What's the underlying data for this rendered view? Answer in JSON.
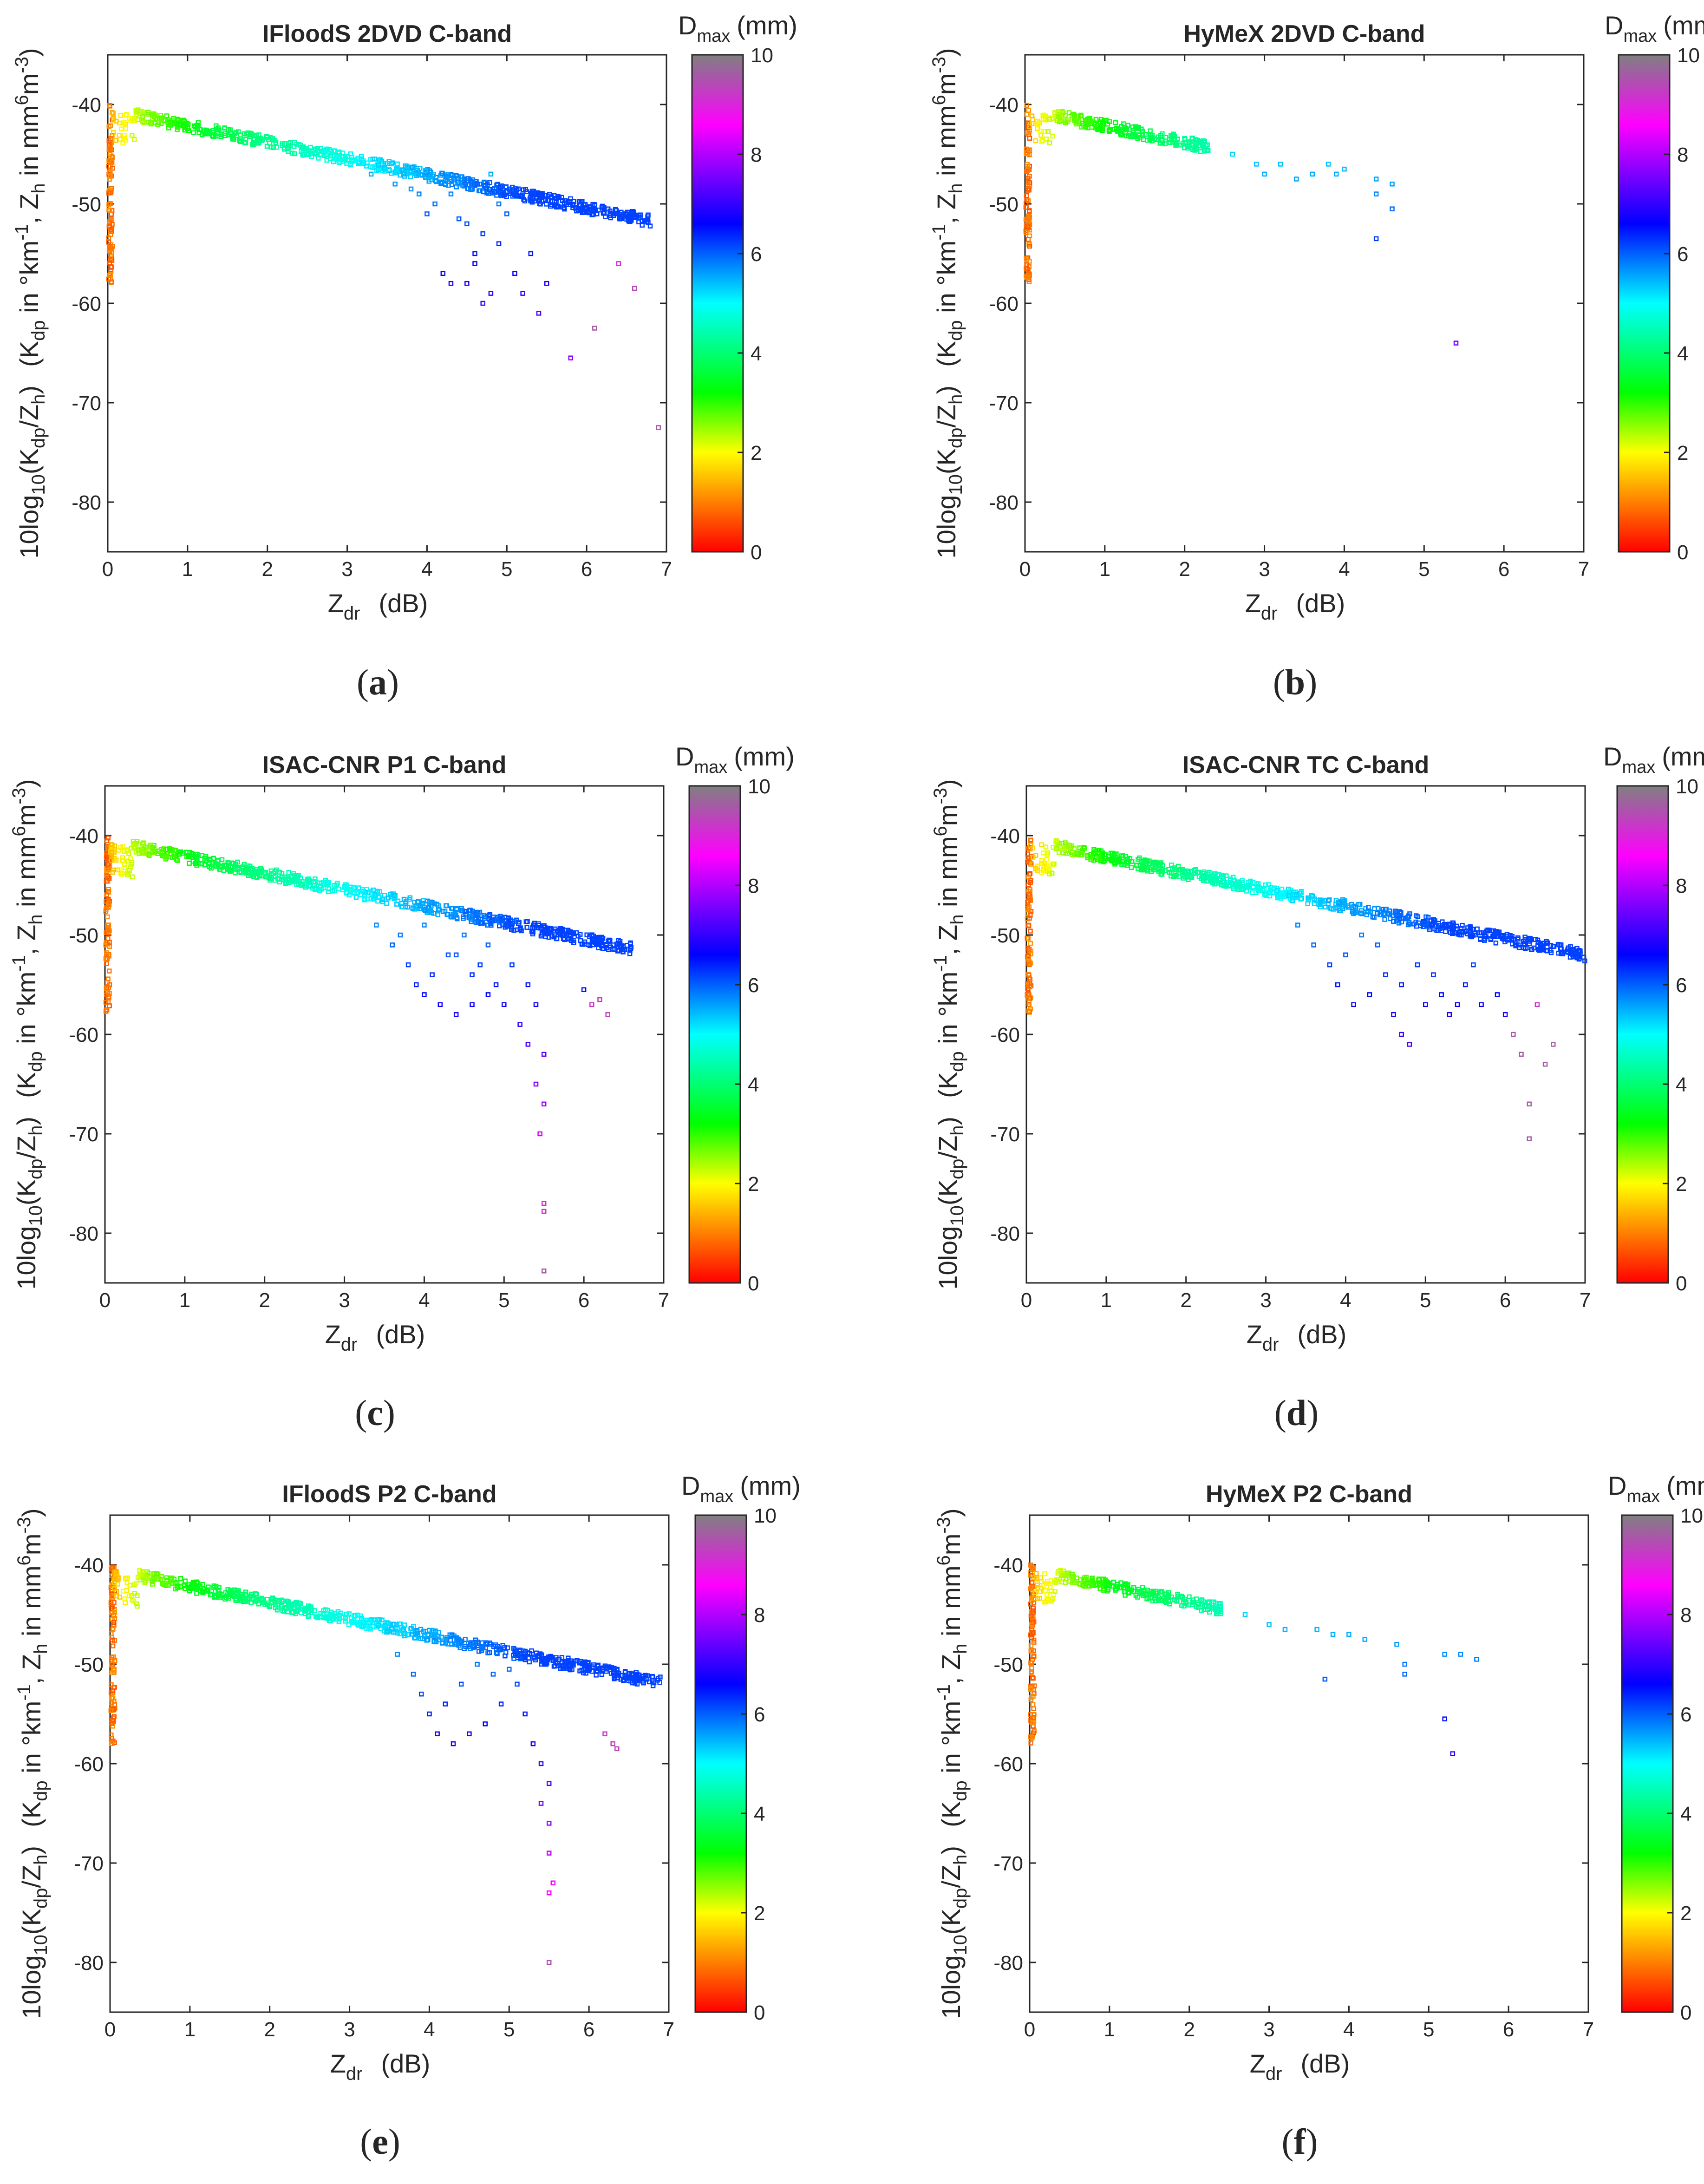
{
  "common": {
    "x_label_main": "Z",
    "x_label_sub": "dr",
    "x_label_unit": "(dB)",
    "y_label": {
      "p1": "10log",
      "p2": "10",
      "p3": "(K",
      "p4": "dp",
      "p5": "/Z",
      "p6": "h",
      "p7": ")",
      "p8": "(K",
      "p9": "dp",
      "p10": " in °km",
      "p11": "-1",
      "p12": ", Z",
      "p13": "h",
      "p14": " in mm",
      "p15": "6",
      "p16": "m",
      "p17": "-3",
      "p18": ")"
    },
    "colorbar": {
      "label_main": "D",
      "label_sub": "max",
      "label_unit": "(mm)",
      "ticks": [
        "0",
        "2",
        "4",
        "6",
        "8",
        "10"
      ],
      "range": [
        0,
        10
      ]
    },
    "colormap_stops": [
      "#ff0000",
      "#ff7f00",
      "#ffff00",
      "#00ff00",
      "#00ffff",
      "#0000ff",
      "#7f00ff",
      "#ff00ff",
      "#808080"
    ],
    "x_ticks": [
      "0",
      "1",
      "2",
      "3",
      "4",
      "5",
      "6",
      "7"
    ],
    "y_ticks": [
      "-40",
      "-50",
      "-60",
      "-70",
      "-80"
    ]
  },
  "chart_data": [
    {
      "type": "scatter",
      "panel": "a",
      "title": "IFloodS 2DVD C-band",
      "caption": "a",
      "xlabel": "Zdr (dB)",
      "ylabel": "10log10(Kdp/Zh)",
      "xlim": [
        0,
        7
      ],
      "ylim": [
        -85,
        -35
      ],
      "cloud_max_x": 6.8,
      "outliers": [
        [
          3.3,
          -47
        ],
        [
          3.6,
          -48
        ],
        [
          3.9,
          -49
        ],
        [
          4.1,
          -50
        ],
        [
          4.3,
          -49
        ],
        [
          4.5,
          -52
        ],
        [
          4.6,
          -55
        ],
        [
          4.7,
          -53
        ],
        [
          4.9,
          -54
        ],
        [
          4.2,
          -57
        ],
        [
          4.5,
          -58
        ],
        [
          4.8,
          -59
        ],
        [
          4.3,
          -58
        ],
        [
          4.6,
          -56
        ],
        [
          5.1,
          -57
        ],
        [
          5.2,
          -59
        ],
        [
          5.4,
          -61
        ],
        [
          4.7,
          -60
        ],
        [
          5.5,
          -58
        ],
        [
          5.8,
          -65.5
        ],
        [
          6.1,
          -62.5
        ],
        [
          6.4,
          -56
        ],
        [
          6.6,
          -58.5
        ],
        [
          6.9,
          -72.5
        ],
        [
          4.4,
          -48
        ],
        [
          4.8,
          -47
        ],
        [
          5.0,
          -51
        ],
        [
          3.8,
          -48.5
        ],
        [
          4.0,
          -51
        ],
        [
          4.9,
          -50
        ],
        [
          4.4,
          -51.5
        ],
        [
          5.3,
          -55
        ]
      ]
    },
    {
      "type": "scatter",
      "panel": "b",
      "title": "HyMeX 2DVD C-band",
      "caption": "b",
      "xlabel": "Zdr (dB)",
      "ylabel": "10log10(Kdp/Zh)",
      "xlim": [
        0,
        7
      ],
      "ylim": [
        -85,
        -35
      ],
      "cloud_max_x": 2.3,
      "outliers": [
        [
          2.6,
          -45
        ],
        [
          2.9,
          -46
        ],
        [
          3.0,
          -47
        ],
        [
          3.2,
          -46
        ],
        [
          3.4,
          -47.5
        ],
        [
          3.6,
          -47
        ],
        [
          3.8,
          -46
        ],
        [
          3.9,
          -47
        ],
        [
          4.0,
          -46.5
        ],
        [
          4.4,
          -47.5
        ],
        [
          4.6,
          -48
        ],
        [
          4.6,
          -50.5
        ],
        [
          4.4,
          -53.5
        ],
        [
          4.4,
          -49
        ],
        [
          5.4,
          -64
        ]
      ]
    },
    {
      "type": "scatter",
      "panel": "c",
      "title": "ISAC-CNR P1 C-band",
      "caption": "c",
      "xlabel": "Zdr (dB)",
      "ylabel": "10log10(Kdp/Zh)",
      "xlim": [
        0,
        7
      ],
      "ylim": [
        -85,
        -35
      ],
      "cloud_max_x": 6.6,
      "outliers": [
        [
          3.4,
          -49
        ],
        [
          3.6,
          -51
        ],
        [
          3.8,
          -53
        ],
        [
          3.9,
          -55
        ],
        [
          4.0,
          -56
        ],
        [
          4.2,
          -57
        ],
        [
          4.4,
          -58
        ],
        [
          4.6,
          -57
        ],
        [
          4.8,
          -56
        ],
        [
          4.1,
          -54
        ],
        [
          4.3,
          -52
        ],
        [
          4.5,
          -50
        ],
        [
          4.7,
          -53
        ],
        [
          4.9,
          -55
        ],
        [
          5.0,
          -57
        ],
        [
          5.2,
          -59
        ],
        [
          5.3,
          -61
        ],
        [
          5.4,
          -57
        ],
        [
          5.5,
          -62
        ],
        [
          5.4,
          -65
        ],
        [
          5.5,
          -67
        ],
        [
          5.45,
          -70
        ],
        [
          5.5,
          -77
        ],
        [
          5.5,
          -77.8
        ],
        [
          5.5,
          -83.8
        ],
        [
          6.0,
          -55.5
        ],
        [
          6.2,
          -56.5
        ],
        [
          6.3,
          -58
        ],
        [
          6.1,
          -57
        ],
        [
          3.7,
          -50
        ],
        [
          4.0,
          -49
        ],
        [
          4.4,
          -52
        ],
        [
          4.8,
          -51
        ],
        [
          5.1,
          -53
        ],
        [
          5.3,
          -55
        ],
        [
          4.6,
          -54
        ]
      ]
    },
    {
      "type": "scatter",
      "panel": "d",
      "title": "ISAC-CNR TC C-band",
      "caption": "d",
      "xlabel": "Zdr (dB)",
      "ylabel": "10log10(Kdp/Zh)",
      "xlim": [
        0,
        7
      ],
      "ylim": [
        -85,
        -35
      ],
      "cloud_max_x": 7.0,
      "outliers": [
        [
          3.4,
          -49
        ],
        [
          3.6,
          -51
        ],
        [
          3.8,
          -53
        ],
        [
          3.9,
          -55
        ],
        [
          4.1,
          -57
        ],
        [
          4.3,
          -56
        ],
        [
          4.5,
          -54
        ],
        [
          4.6,
          -58
        ],
        [
          4.7,
          -60
        ],
        [
          4.8,
          -61
        ],
        [
          5.0,
          -57
        ],
        [
          5.2,
          -56
        ],
        [
          5.4,
          -57
        ],
        [
          5.5,
          -55
        ],
        [
          5.7,
          -57
        ],
        [
          5.9,
          -56
        ],
        [
          6.0,
          -58
        ],
        [
          6.1,
          -60
        ],
        [
          6.2,
          -62
        ],
        [
          6.3,
          -67
        ],
        [
          6.3,
          -70.5
        ],
        [
          6.5,
          -63
        ],
        [
          6.6,
          -61
        ],
        [
          4.0,
          -52
        ],
        [
          4.4,
          -51
        ],
        [
          4.9,
          -53
        ],
        [
          5.1,
          -54
        ],
        [
          5.3,
          -58
        ],
        [
          4.2,
          -50
        ],
        [
          4.7,
          -55
        ],
        [
          5.6,
          -53
        ],
        [
          6.4,
          -57
        ]
      ]
    },
    {
      "type": "scatter",
      "panel": "e",
      "title": "IFloodS P2 C-band",
      "caption": "e",
      "xlabel": "Zdr (dB)",
      "ylabel": "10log10(Kdp/Zh)",
      "xlim": [
        0,
        7
      ],
      "ylim": [
        -85,
        -35
      ],
      "cloud_max_x": 6.9,
      "outliers": [
        [
          3.6,
          -49
        ],
        [
          3.8,
          -51
        ],
        [
          3.9,
          -53
        ],
        [
          4.0,
          -55
        ],
        [
          4.1,
          -57
        ],
        [
          4.3,
          -58
        ],
        [
          4.5,
          -57
        ],
        [
          4.7,
          -56
        ],
        [
          4.9,
          -54
        ],
        [
          5.1,
          -52
        ],
        [
          5.2,
          -55
        ],
        [
          5.3,
          -58
        ],
        [
          5.4,
          -60
        ],
        [
          5.5,
          -62
        ],
        [
          5.4,
          -64
        ],
        [
          5.5,
          -66
        ],
        [
          5.5,
          -69
        ],
        [
          5.55,
          -72
        ],
        [
          5.5,
          -73
        ],
        [
          5.5,
          -80
        ],
        [
          6.2,
          -57
        ],
        [
          6.3,
          -58
        ],
        [
          6.35,
          -58.5
        ],
        [
          4.4,
          -52
        ],
        [
          4.6,
          -50
        ],
        [
          4.8,
          -51
        ],
        [
          4.2,
          -54
        ],
        [
          5.0,
          -50.5
        ]
      ]
    },
    {
      "type": "scatter",
      "panel": "f",
      "title": "HyMeX P2 C-band",
      "caption": "f",
      "xlabel": "Zdr (dB)",
      "ylabel": "10log10(Kdp/Zh)",
      "xlim": [
        0,
        7
      ],
      "ylim": [
        -85,
        -35
      ],
      "cloud_max_x": 2.4,
      "outliers": [
        [
          2.7,
          -45
        ],
        [
          3.0,
          -46
        ],
        [
          3.2,
          -46.5
        ],
        [
          3.6,
          -46.5
        ],
        [
          3.8,
          -47
        ],
        [
          4.0,
          -47
        ],
        [
          4.2,
          -47.5
        ],
        [
          4.6,
          -48
        ],
        [
          3.7,
          -51.5
        ],
        [
          4.7,
          -50
        ],
        [
          4.7,
          -51
        ],
        [
          5.2,
          -49
        ],
        [
          5.4,
          -49
        ],
        [
          5.6,
          -49.5
        ],
        [
          5.2,
          -55.5
        ],
        [
          5.3,
          -59
        ]
      ]
    }
  ]
}
